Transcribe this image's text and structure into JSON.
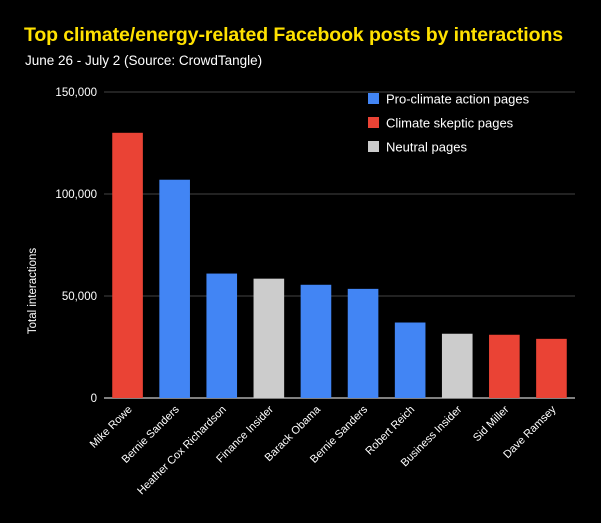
{
  "title": "Top climate/energy-related Facebook posts by interactions",
  "subtitle": "June 26 - July 2 (Source: CrowdTangle)",
  "chart_data": {
    "type": "bar",
    "ylabel": "Total interactions",
    "ylim": [
      0,
      150000
    ],
    "yticks": [
      0,
      50000,
      100000,
      150000
    ],
    "ytick_labels": [
      "0",
      "50,000",
      "100,000",
      "150,000"
    ],
    "grid": true,
    "legend_position": "top-right",
    "groups": [
      {
        "name": "Pro-climate action pages",
        "color": "#4285f4"
      },
      {
        "name": "Climate skeptic pages",
        "color": "#ea4335"
      },
      {
        "name": "Neutral pages",
        "color": "#cccccc"
      }
    ],
    "categories": [
      "Mike Rowe",
      "Bernie Sanders",
      "Heather Cox Richardson",
      "Finance Insider",
      "Barack Obama",
      "Bernie Sanders",
      "Robert Reich",
      "Business Insider",
      "Sid Miller",
      "Dave Ramsey"
    ],
    "values": [
      130000,
      107000,
      61000,
      58500,
      55500,
      53500,
      37000,
      31500,
      31000,
      29000
    ],
    "bar_groups": [
      1,
      0,
      0,
      2,
      0,
      0,
      0,
      2,
      1,
      1
    ]
  }
}
